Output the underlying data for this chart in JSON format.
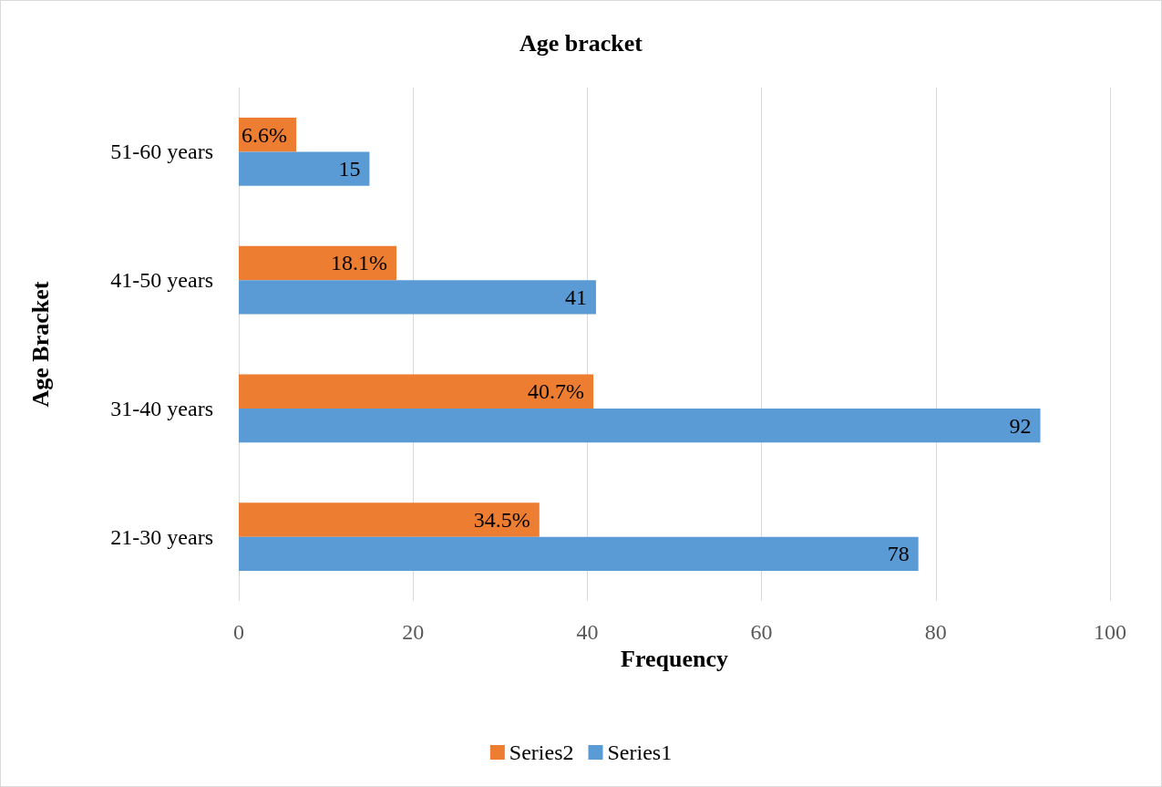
{
  "chart_data": {
    "type": "bar",
    "orientation": "horizontal",
    "title": "Age bracket",
    "xlabel": "Frequency",
    "ylabel": "Age Bracket",
    "categories": [
      "51-60 years",
      "41-50 years",
      "31-40 years",
      "21-30 years"
    ],
    "series": [
      {
        "name": "Series2",
        "color": "#ed7d31",
        "values": [
          6.6,
          18.1,
          40.7,
          34.5
        ],
        "value_labels": [
          "6.6%",
          "18.1%",
          "40.7%",
          "34.5%"
        ]
      },
      {
        "name": "Series1",
        "color": "#5b9bd5",
        "values": [
          15,
          41,
          92,
          78
        ],
        "value_labels": [
          "15",
          "41",
          "92",
          "78"
        ]
      }
    ],
    "xlim": [
      0,
      100
    ],
    "xticks": [
      0,
      20,
      40,
      60,
      80,
      100
    ],
    "grid": "x",
    "legend": "bottom"
  }
}
